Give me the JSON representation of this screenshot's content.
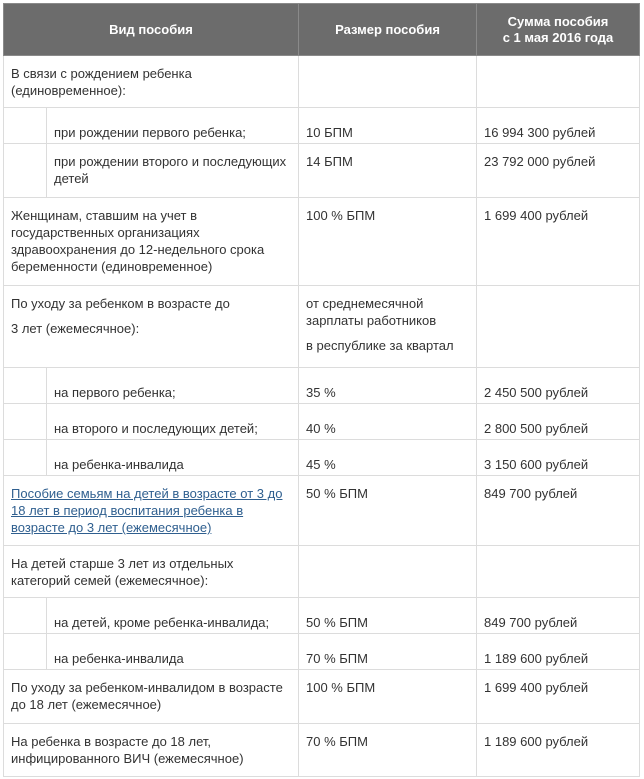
{
  "table": {
    "header": [
      "Вид пособия",
      "Размер пособия",
      [
        "Сумма пособия",
        "с 1 мая 2016 года"
      ]
    ],
    "rows": [
      [
        "В связи с рождением ребенка (единовременное):"
      ],
      [
        "при рождении первого ребенка;",
        "10 БПМ",
        "16 994 300 рублей"
      ],
      [
        "при рождении второго и последующих детей",
        "14 БПМ",
        "23 792 000 рублей"
      ],
      [
        "Женщинам, ставшим на учет в государственных организациях здравоохранения до 12-недельного срока беременности (единовременное)",
        "100 % БПМ",
        "1 699 400 рублей"
      ],
      [
        [
          "По уходу за ребенком в возрасте до",
          "3 лет (ежемесячное):"
        ],
        [
          "от среднемесячной зарплаты работников",
          "в республике за квартал"
        ]
      ],
      [
        "на первого ребенка;",
        "35 %",
        "2 450 500 рублей"
      ],
      [
        "на второго и последующих детей;",
        "40 %",
        "2 800 500 рублей"
      ],
      [
        "на ребенка-инвалида",
        "45 %",
        "3 150 600 рублей"
      ],
      [
        "Пособие семьям на детей в возрасте от 3 до 18 лет в период воспитания ребенка в возрасте до 3 лет (ежемесячное)",
        "50 % БПМ",
        "849 700 рублей"
      ],
      [
        "На детей старше 3 лет из отдельных категорий семей (ежемесячное):"
      ],
      [
        "на детей, кроме ребенка-инвалида;",
        "50 % БПМ",
        "849 700 рублей"
      ],
      [
        "на ребенка-инвалида",
        "70 % БПМ",
        "1 189 600 рублей"
      ],
      [
        "По уходу за ребенком-инвалидом в возрасте до 18 лет (ежемесячное)",
        "100 % БПМ",
        "1 699 400 рублей"
      ],
      [
        "На ребенка в возрасте до 18 лет, инфицированного ВИЧ (ежемесячное)",
        "70 % БПМ",
        "1 189 600 рублей"
      ]
    ]
  }
}
